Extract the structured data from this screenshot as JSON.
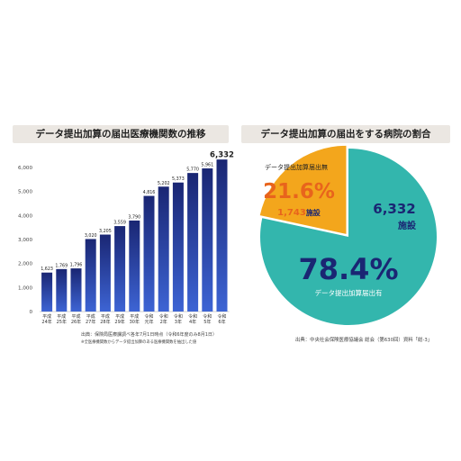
{
  "colors": {
    "bar_light": "#3d64d4",
    "bar_dark": "#1a2673",
    "pie_teal": "#33b6ad",
    "pie_orange": "#f3a61c",
    "pie_orange_text": "#e8641c",
    "pie_dark_text": "#1a2673",
    "title_band": "#ebe7e2"
  },
  "left": {
    "title": "データ提出加算の届出医療機関数の推移",
    "source": "出典：保険局医療課調べ各年7月1日時点（令和6年度のみ8月1日）",
    "note": "※全医療機関数からデータ提出加算のある医療機関数を抽出した値"
  },
  "right": {
    "title": "データ提出加算の届出をする病院の割合",
    "without_label": "データ提出加算届出無",
    "without_pct": "21.6%",
    "without_count": "1,743",
    "without_unit": "施設",
    "with_count": "6,332",
    "with_unit": "施設",
    "with_pct": "78.4%",
    "with_label": "データ提出加算届出有",
    "source": "出典：中央社会保険医療協議会 総会（第630回）資料「総-3」"
  },
  "chart_data": [
    {
      "type": "bar",
      "title": "データ提出加算の届出医療機関数の推移",
      "categories": [
        [
          "平成",
          "24年"
        ],
        [
          "平成",
          "25年"
        ],
        [
          "平成",
          "26年"
        ],
        [
          "平成",
          "27年"
        ],
        [
          "平成",
          "28年"
        ],
        [
          "平成",
          "29年"
        ],
        [
          "平成",
          "30年"
        ],
        [
          "令和",
          "元年"
        ],
        [
          "令和",
          "2年"
        ],
        [
          "令和",
          "3年"
        ],
        [
          "令和",
          "4年"
        ],
        [
          "令和",
          "5年"
        ],
        [
          "令和",
          "6年"
        ]
      ],
      "values": [
        1623,
        1769,
        1796,
        3020,
        3205,
        3559,
        3790,
        4816,
        5202,
        5373,
        5770,
        5961,
        6332
      ],
      "value_labels": [
        "1,623",
        "1,769",
        "1,796",
        "3,020",
        "3,205",
        "3,559",
        "3,790",
        "4,816",
        "5,202",
        "5,373",
        "5,770",
        "5,961",
        "6,332"
      ],
      "yticks": [
        "0",
        "1,000",
        "2,000",
        "3,000",
        "4,000",
        "5,000",
        "6,000"
      ],
      "ylim": [
        0,
        6000
      ],
      "grid": false
    },
    {
      "type": "pie",
      "title": "データ提出加算の届出をする病院の割合",
      "labels": [
        "データ提出加算届出有",
        "データ提出加算届出無"
      ],
      "values": [
        78.4,
        21.6
      ],
      "counts": [
        6332,
        1743
      ]
    }
  ]
}
